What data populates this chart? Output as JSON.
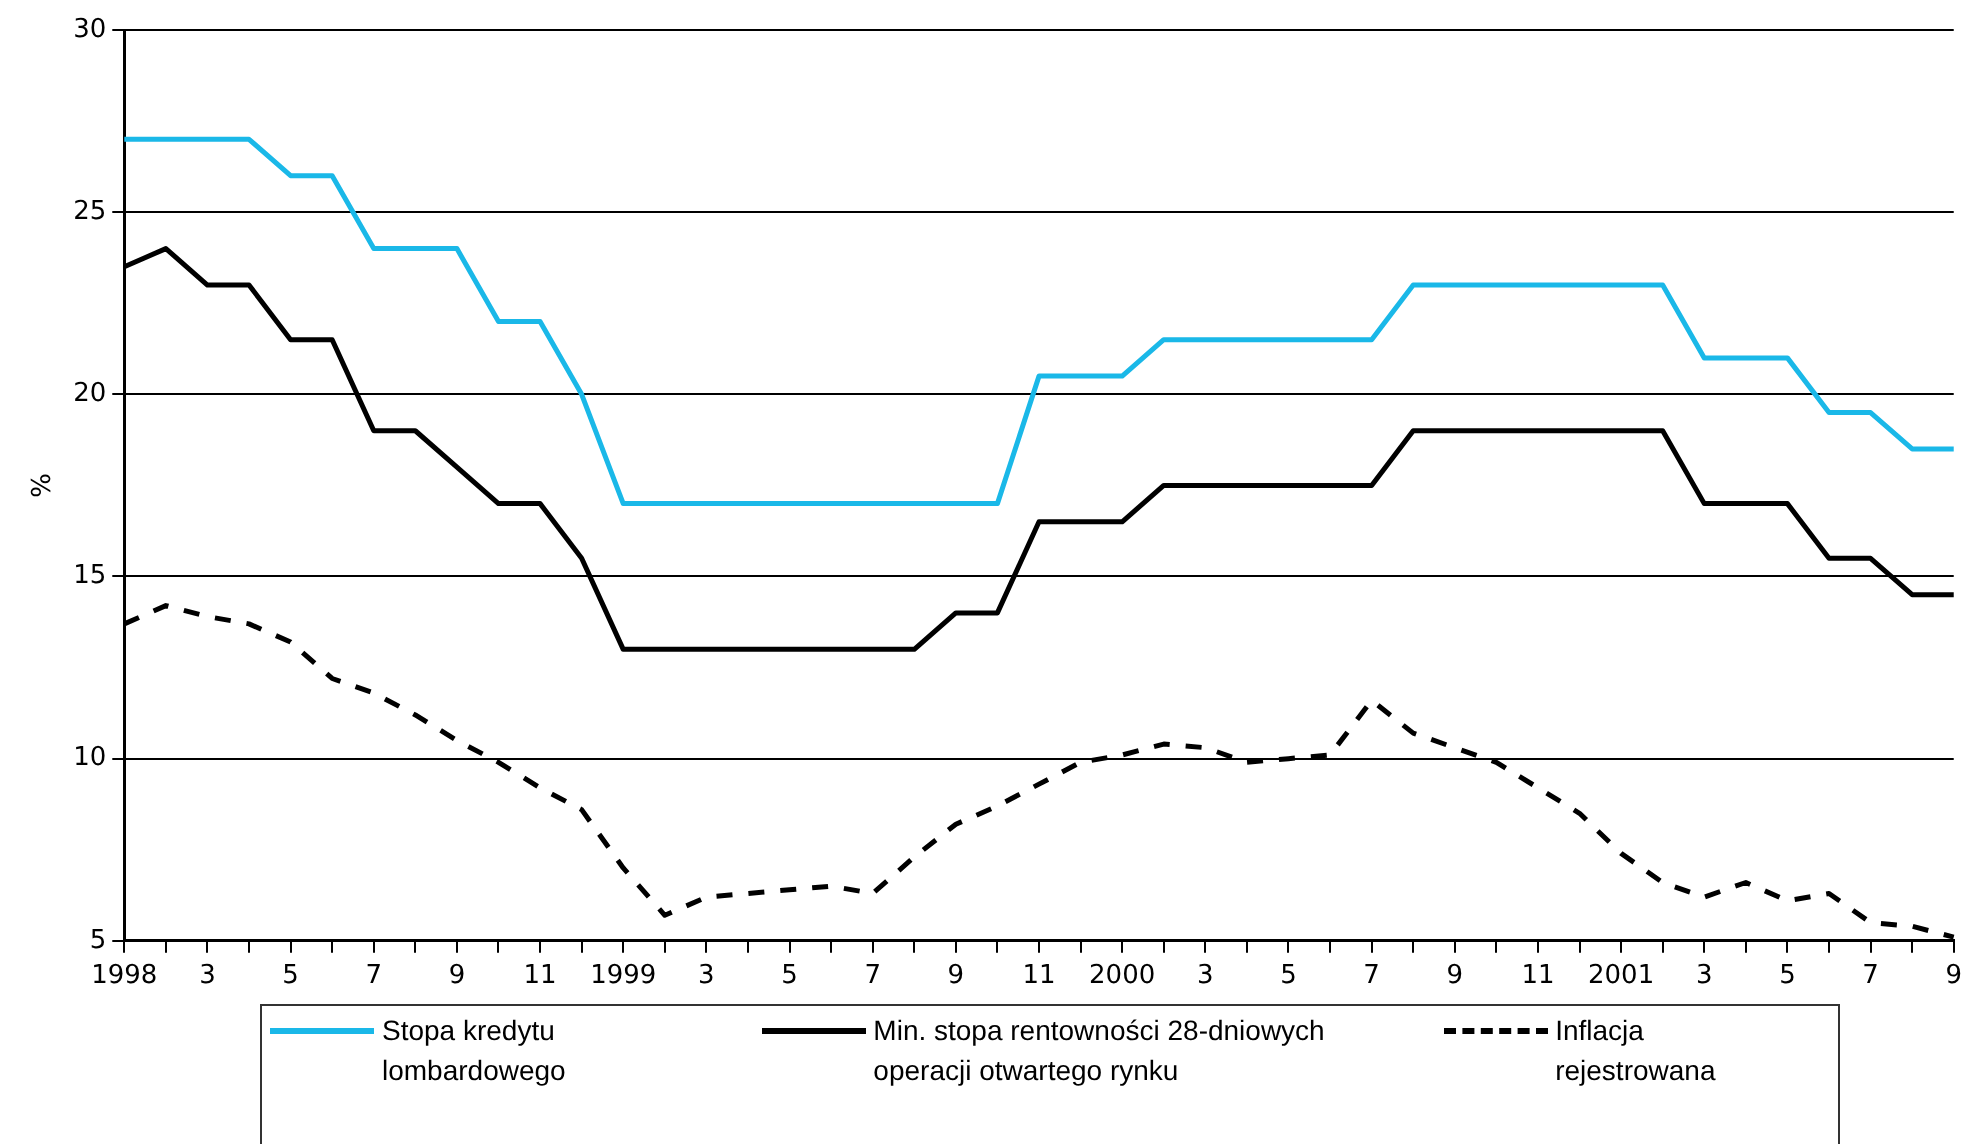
{
  "chart_data": {
    "type": "line",
    "ylabel": "%",
    "categories": [
      "1998",
      null,
      "3",
      null,
      "5",
      null,
      "7",
      null,
      "9",
      null,
      "11",
      null,
      "1999",
      null,
      "3",
      null,
      "5",
      null,
      "7",
      null,
      "9",
      null,
      "11",
      null,
      "2000",
      null,
      "3",
      null,
      "5",
      null,
      "7",
      null,
      "9",
      null,
      "11",
      null,
      "2001",
      null,
      "3",
      null,
      "5",
      null,
      "7",
      null,
      "9"
    ],
    "series": [
      {
        "name": "Stopa kredytu lombardowego",
        "color": "#1ab8e8",
        "line_style": "solid",
        "values": [
          27,
          27,
          27,
          27,
          26,
          26,
          24,
          24,
          24,
          22,
          22,
          20,
          17,
          17,
          17,
          17,
          17,
          17,
          17,
          17,
          17,
          17,
          20.5,
          20.5,
          20.5,
          21.5,
          21.5,
          21.5,
          21.5,
          21.5,
          21.5,
          23,
          23,
          23,
          23,
          23,
          23,
          23,
          21,
          21,
          21,
          19.5,
          19.5,
          18.5,
          18.5
        ]
      },
      {
        "name": "Min. stopa rentowności 28-dniowych operacji otwartego rynku",
        "color": "#000000",
        "line_style": "solid",
        "values": [
          23.5,
          24,
          23,
          23,
          21.5,
          21.5,
          19,
          19,
          18,
          17,
          17,
          15.5,
          13,
          13,
          13,
          13,
          13,
          13,
          13,
          13,
          14,
          14,
          16.5,
          16.5,
          16.5,
          17.5,
          17.5,
          17.5,
          17.5,
          17.5,
          17.5,
          19,
          19,
          19,
          19,
          19,
          19,
          19,
          17,
          17,
          17,
          15.5,
          15.5,
          14.5,
          14.5
        ]
      },
      {
        "name": "Inflacja rejestrowana",
        "color": "#000000",
        "line_style": "dashed",
        "values": [
          13.7,
          14.2,
          13.9,
          13.7,
          13.2,
          12.2,
          11.8,
          11.2,
          10.5,
          9.9,
          9.2,
          8.6,
          7.0,
          5.7,
          6.2,
          6.3,
          6.4,
          6.5,
          6.3,
          7.3,
          8.2,
          8.7,
          9.3,
          9.9,
          10.1,
          10.4,
          10.3,
          9.9,
          10.0,
          10.1,
          11.6,
          10.7,
          10.3,
          9.9,
          9.2,
          8.5,
          7.4,
          6.6,
          6.2,
          6.6,
          6.1,
          6.3,
          5.5,
          5.4,
          5.1
        ]
      }
    ],
    "ylim": [
      5,
      30
    ],
    "yticks": [
      5,
      10,
      15,
      20,
      25,
      30
    ],
    "grid": "y",
    "legend": "bottom",
    "marker": "none"
  }
}
